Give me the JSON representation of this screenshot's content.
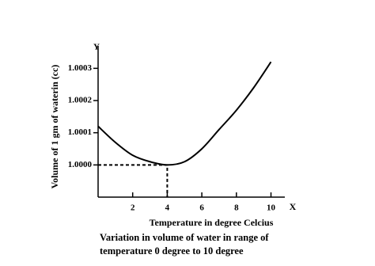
{
  "chart_data": {
    "type": "line",
    "y_axis_label": "Volume of 1 gm of waterin (cc)",
    "x_axis_label": "Temperature in degree Celcius",
    "y_axis_end_label": "Y",
    "x_axis_end_label": "X",
    "caption": [
      "Variation in volume of water in range of",
      "temperature 0 degree to  10 degree"
    ],
    "x": [
      0,
      1,
      2,
      3,
      4,
      5,
      6,
      7,
      8,
      9,
      10
    ],
    "series": [
      {
        "color": "#000000",
        "values": [
          1.00012,
          1.00007,
          1.00003,
          1.00001,
          1.0,
          1.00001,
          1.00005,
          1.00011,
          1.00017,
          1.00024,
          1.00032
        ]
      }
    ],
    "xlim": [
      0,
      10.8
    ],
    "ylim": [
      0.9999,
      1.00035
    ],
    "xticks": [
      2,
      4,
      6,
      8,
      10
    ],
    "yticks": [
      {
        "value": 1.0,
        "label": "1.0000"
      },
      {
        "value": 1.0001,
        "label": "1.0001"
      },
      {
        "value": 1.0002,
        "label": "1.0002"
      },
      {
        "value": 1.0003,
        "label": "1.0003"
      }
    ],
    "grid": false
  }
}
